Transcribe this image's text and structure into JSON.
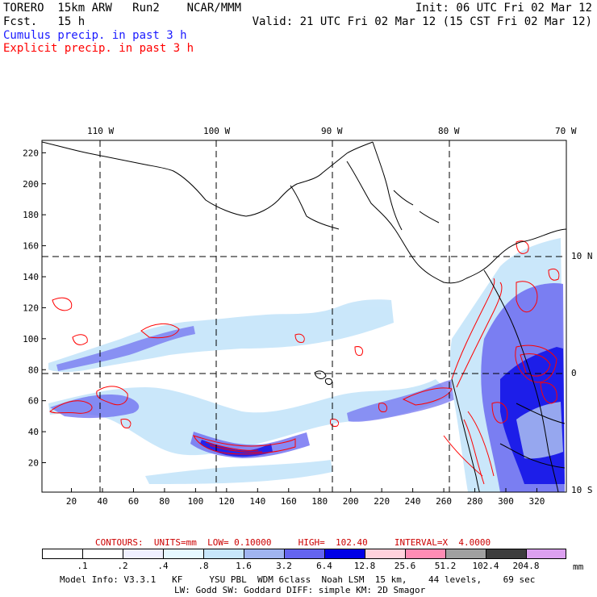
{
  "header": {
    "left_line1": "TORERO  15km ARW   Run2    NCAR/MMM",
    "left_line2": "Fcst.   15 h",
    "init": "Init: 06 UTC Fri 02 Mar 12",
    "valid": "Valid: 21 UTC Fri 02 Mar 12 (15 CST Fri 02 Mar 12)",
    "cumulus_label": "Cumulus precip. in past 3 h",
    "explicit_label": "Explicit precip. in past 3 h",
    "cumulus_color": "#1a1aff",
    "explicit_color": "#ff0000"
  },
  "map": {
    "top_lon_labels": [
      "110 W",
      "100 W",
      "90 W",
      "80 W",
      "70 W"
    ],
    "right_lat_labels": [
      "10 N",
      "0",
      "10 S"
    ],
    "y_ticks": [
      "220",
      "200",
      "180",
      "160",
      "140",
      "120",
      "100",
      "80",
      "60",
      "40",
      "20"
    ],
    "x_ticks": [
      "20",
      "40",
      "60",
      "80",
      "100",
      "120",
      "140",
      "160",
      "180",
      "200",
      "220",
      "240",
      "260",
      "280",
      "300",
      "320"
    ]
  },
  "contours_info": {
    "label": "CONTOURS:  UNITS=mm  LOW= 0.10000     HIGH=  102.40     INTERVAL=X  4.0000",
    "color": "#cc0000"
  },
  "legend": {
    "labels": [
      ".1",
      ".2",
      ".4",
      ".8",
      "1.6",
      "3.2",
      "6.4",
      "12.8",
      "25.6",
      "51.2",
      "102.4",
      "204.8"
    ],
    "unit": "mm",
    "colors": [
      "#ffffff",
      "#ffffff",
      "#f0f0ff",
      "#e6f8ff",
      "#c8e6fa",
      "#a0b4f0",
      "#6464f0",
      "#0000e6",
      "#ffd2dc",
      "#ff8cb4",
      "#a0a0a0",
      "#3c3c3c",
      "#dca0f0"
    ]
  },
  "footer": {
    "line1": "Model Info: V3.3.1   KF     YSU PBL  WDM 6class  Noah LSM  15 km,    44 levels,    69 sec",
    "line2": "LW: Godd SW: Goddard DIFF: simple KM: 2D Smagor"
  }
}
